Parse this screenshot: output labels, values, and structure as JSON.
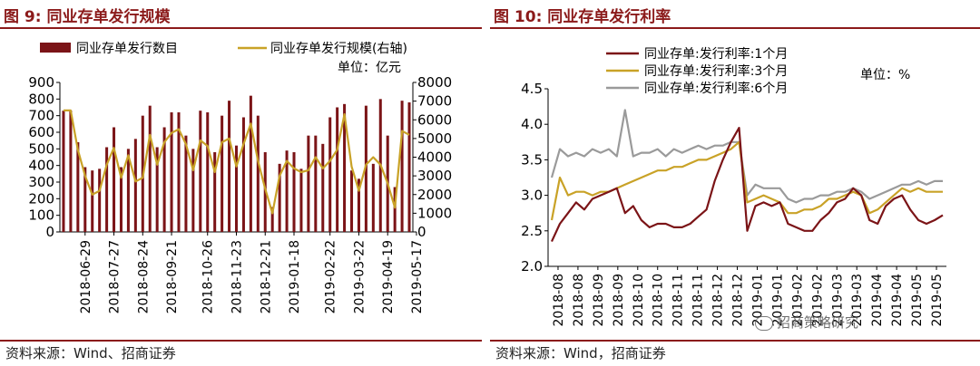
{
  "left_panel": {
    "figure_label": "图 9:",
    "figure_title": "同业存单发行规模",
    "source": "资料来源：Wind、招商证券"
  },
  "right_panel": {
    "figure_label": "图 10:",
    "figure_title": "同业存单发行利率",
    "source": "资料来源：Wind，招商证券"
  },
  "watermark": "招商策略研究",
  "colors": {
    "brand": "#8b1a1a",
    "bar": "#7b1417",
    "line_gold": "#c9a227",
    "line_gray": "#9a9a9a"
  },
  "chart_data": [
    {
      "type": "bar",
      "title": "同业存单发行规模",
      "unit_label": "单位：亿元",
      "ylim_left": [
        0,
        900
      ],
      "yticks_left": [
        0,
        100,
        200,
        300,
        400,
        500,
        600,
        700,
        800,
        900
      ],
      "ylim_right": [
        0,
        8000
      ],
      "yticks_right": [
        0,
        1000,
        2000,
        3000,
        4000,
        5000,
        6000,
        7000,
        8000
      ],
      "x_tick_labels": [
        "2018-06-29",
        "2018-07-27",
        "2018-08-24",
        "2018-09-21",
        "2018-10-26",
        "2018-11-23",
        "2018-12-21",
        "2019-01-18",
        "2019-02-22",
        "2019-03-22",
        "2019-04-19",
        "2019-05-17"
      ],
      "x_tick_positions": [
        3,
        7,
        11,
        15,
        20,
        24,
        28,
        32,
        37,
        41,
        45,
        49
      ],
      "legend": {
        "position": "top"
      },
      "grid": false,
      "series": [
        {
          "name": "同业存单发行数目",
          "kind": "bar",
          "axis": "left",
          "values": [
            730,
            730,
            540,
            390,
            370,
            380,
            510,
            630,
            390,
            500,
            560,
            700,
            760,
            510,
            630,
            720,
            720,
            580,
            500,
            730,
            720,
            480,
            700,
            790,
            520,
            690,
            820,
            700,
            480,
            150,
            410,
            490,
            480,
            380,
            580,
            580,
            530,
            690,
            750,
            770,
            370,
            320,
            760,
            410,
            800,
            580,
            270,
            790,
            780
          ]
        },
        {
          "name": "同业存单发行规模(右轴)",
          "kind": "line",
          "axis": "right",
          "values": [
            6500,
            6500,
            4400,
            3000,
            2000,
            2200,
            3600,
            4500,
            2900,
            4100,
            2700,
            2900,
            5200,
            3600,
            4800,
            5300,
            5500,
            4700,
            3300,
            4900,
            4600,
            3200,
            4800,
            5000,
            3500,
            4700,
            5800,
            3800,
            2300,
            1000,
            3000,
            3800,
            3400,
            3200,
            3300,
            4000,
            3400,
            3800,
            4400,
            6300,
            3500,
            2200,
            3600,
            4000,
            3600,
            2600,
            1300,
            5400,
            5200
          ]
        }
      ]
    },
    {
      "type": "line",
      "title": "同业存单发行利率",
      "unit_label": "单位：%",
      "ylim": [
        2.0,
        4.5
      ],
      "yticks": [
        2.0,
        2.5,
        3.0,
        3.5,
        4.0,
        4.5
      ],
      "ytick_labels": [
        "2.0",
        "2.5",
        "3.0",
        "3.5",
        "4.0",
        "4.5"
      ],
      "x_tick_labels": [
        "2018-08",
        "2018-08",
        "2018-09",
        "2018-09",
        "2018-10",
        "2018-10",
        "2018-11",
        "2018-11",
        "2018-12",
        "2018-12",
        "2019-01",
        "2019-01",
        "2019-02",
        "2019-02",
        "2019-03",
        "2019-03",
        "2019-04",
        "2019-04",
        "2019-05",
        "2019-05"
      ],
      "legend": {
        "position": "top-left"
      },
      "grid": false,
      "series": [
        {
          "name": "同业存单:发行利率:1个月",
          "values": [
            2.35,
            2.6,
            2.75,
            2.9,
            2.8,
            2.95,
            3.0,
            3.05,
            3.1,
            2.75,
            2.85,
            2.65,
            2.55,
            2.6,
            2.6,
            2.55,
            2.55,
            2.6,
            2.7,
            2.8,
            3.2,
            3.5,
            3.75,
            3.95,
            2.5,
            2.85,
            2.9,
            2.85,
            2.9,
            2.6,
            2.55,
            2.5,
            2.5,
            2.65,
            2.75,
            2.9,
            2.95,
            3.1,
            3.0,
            2.65,
            2.6,
            2.85,
            2.95,
            3.0,
            2.8,
            2.65,
            2.6,
            2.65,
            2.72
          ]
        },
        {
          "name": "同业存单:发行利率:3个月",
          "values": [
            2.65,
            3.25,
            3.0,
            3.05,
            3.05,
            3.0,
            3.05,
            3.05,
            3.1,
            3.15,
            3.2,
            3.25,
            3.3,
            3.35,
            3.35,
            3.4,
            3.4,
            3.45,
            3.5,
            3.5,
            3.55,
            3.6,
            3.65,
            3.75,
            2.9,
            2.95,
            3.0,
            2.95,
            2.9,
            2.75,
            2.75,
            2.8,
            2.8,
            2.85,
            2.95,
            2.95,
            3.0,
            3.05,
            3.0,
            2.75,
            2.8,
            2.9,
            3.0,
            3.1,
            3.05,
            3.1,
            3.05,
            3.05,
            3.05
          ]
        },
        {
          "name": "同业存单:发行利率:6个月",
          "values": [
            3.25,
            3.65,
            3.55,
            3.6,
            3.55,
            3.65,
            3.6,
            3.65,
            3.55,
            4.2,
            3.55,
            3.6,
            3.6,
            3.65,
            3.55,
            3.65,
            3.6,
            3.65,
            3.7,
            3.65,
            3.7,
            3.7,
            3.75,
            3.75,
            3.0,
            3.15,
            3.1,
            3.1,
            3.1,
            2.95,
            2.9,
            2.95,
            2.95,
            3.0,
            3.0,
            3.05,
            3.05,
            3.1,
            3.05,
            2.95,
            3.0,
            3.05,
            3.1,
            3.15,
            3.15,
            3.2,
            3.15,
            3.2,
            3.2
          ]
        }
      ]
    }
  ]
}
